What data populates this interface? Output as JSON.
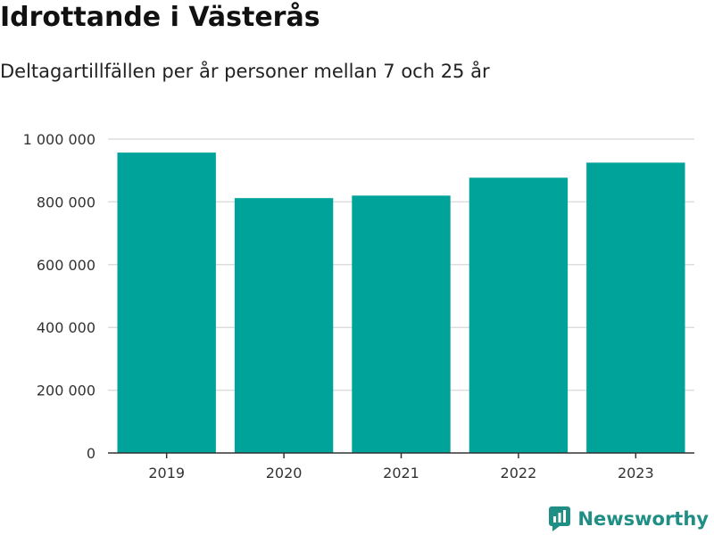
{
  "title": "Idrottande i Västerås",
  "subtitle": "Deltagartillfällen per år personer mellan 7 och 25 år",
  "brand": {
    "name": "Newsworthy",
    "icon": "newsworthy-logo-icon",
    "color": "#1f8e85"
  },
  "colors": {
    "bar": "#00a39a",
    "grid": "#dddddd",
    "axis": "#333333"
  },
  "chart_data": {
    "type": "bar",
    "title": "Idrottande i Västerås",
    "subtitle": "Deltagartillfällen per år personer mellan 7 och 25 år",
    "xlabel": "",
    "ylabel": "",
    "categories": [
      "2019",
      "2020",
      "2021",
      "2022",
      "2023"
    ],
    "values": [
      957000,
      812000,
      820000,
      877000,
      925000
    ],
    "ylim": [
      0,
      1000000
    ],
    "yticks": [
      0,
      200000,
      400000,
      600000,
      800000,
      1000000
    ],
    "ytick_labels": [
      "0",
      "200 000",
      "400 000",
      "600 000",
      "800 000",
      "1 000 000"
    ],
    "grid": true,
    "legend": "none"
  }
}
